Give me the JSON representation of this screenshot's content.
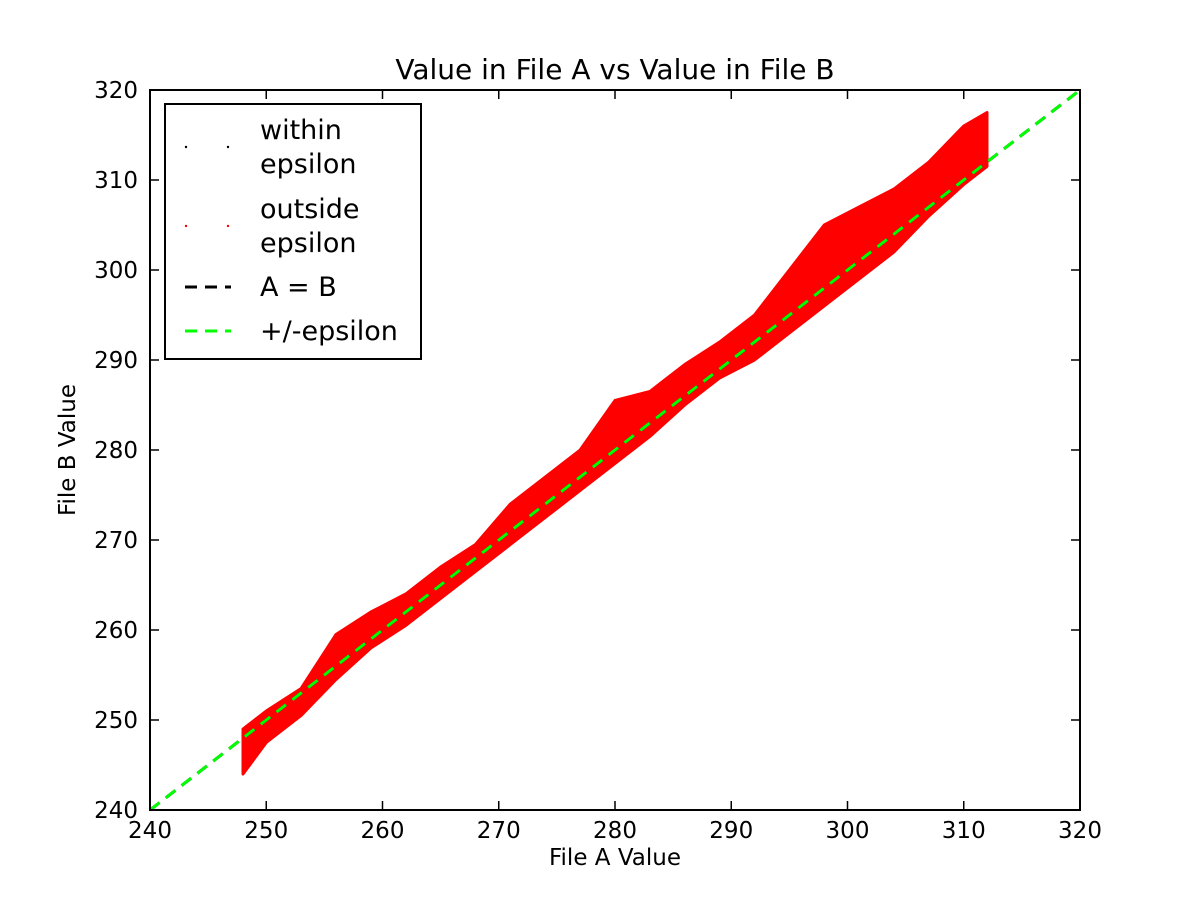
{
  "chart_data": {
    "type": "scatter",
    "title": "Value in File A vs Value in File B",
    "xlabel": "File A Value",
    "ylabel": "File B Value",
    "xlim": [
      240,
      320
    ],
    "ylim": [
      240,
      320
    ],
    "xticks": [
      240,
      250,
      260,
      270,
      280,
      290,
      300,
      310,
      320
    ],
    "yticks": [
      240,
      250,
      260,
      270,
      280,
      290,
      300,
      310,
      320
    ],
    "grid": false,
    "legend_position": "top-left",
    "series": [
      {
        "name": "within\nepsilon",
        "kind": "points",
        "color": "#000000",
        "points": []
      },
      {
        "name": "outside\nepsilon",
        "kind": "points",
        "color": "#ff0000",
        "band_center": [
          [
            248,
            247
          ],
          [
            250,
            249.5
          ],
          [
            253,
            252
          ],
          [
            256,
            256
          ],
          [
            259,
            260
          ],
          [
            262,
            262
          ],
          [
            265,
            265
          ],
          [
            268,
            268
          ],
          [
            271,
            272
          ],
          [
            274,
            275
          ],
          [
            277,
            278
          ],
          [
            280,
            282
          ],
          [
            283,
            284
          ],
          [
            286,
            287
          ],
          [
            289,
            290
          ],
          [
            292,
            292.5
          ],
          [
            295,
            297
          ],
          [
            298,
            301
          ],
          [
            301,
            304
          ],
          [
            304,
            307
          ],
          [
            307,
            310
          ],
          [
            310,
            313
          ],
          [
            312,
            315
          ]
        ],
        "band_lower": [
          [
            248,
            244
          ],
          [
            250,
            247.5
          ],
          [
            253,
            250.5
          ],
          [
            256,
            254.5
          ],
          [
            259,
            258
          ],
          [
            262,
            260.5
          ],
          [
            265,
            263.5
          ],
          [
            268,
            266.5
          ],
          [
            271,
            269.5
          ],
          [
            274,
            272.5
          ],
          [
            277,
            275.5
          ],
          [
            280,
            278.5
          ],
          [
            283,
            281.5
          ],
          [
            286,
            285
          ],
          [
            289,
            288
          ],
          [
            292,
            290
          ],
          [
            295,
            293
          ],
          [
            298,
            296
          ],
          [
            301,
            299
          ],
          [
            304,
            302
          ],
          [
            307,
            306
          ],
          [
            310,
            309.5
          ],
          [
            312,
            311.5
          ]
        ],
        "band_upper": [
          [
            248,
            249
          ],
          [
            250,
            251
          ],
          [
            253,
            253.5
          ],
          [
            256,
            259.5
          ],
          [
            259,
            262
          ],
          [
            262,
            264
          ],
          [
            265,
            267
          ],
          [
            268,
            269.5
          ],
          [
            271,
            274
          ],
          [
            274,
            277
          ],
          [
            277,
            280
          ],
          [
            280,
            285.5
          ],
          [
            283,
            286.5
          ],
          [
            286,
            289.5
          ],
          [
            289,
            292
          ],
          [
            292,
            295
          ],
          [
            295,
            300
          ],
          [
            298,
            305
          ],
          [
            301,
            307
          ],
          [
            304,
            309
          ],
          [
            307,
            312
          ],
          [
            310,
            316
          ],
          [
            312,
            317.5
          ]
        ]
      },
      {
        "name": "A = B",
        "kind": "line",
        "color": "#000000",
        "dash": "dashed",
        "x": [
          240,
          320
        ],
        "y": [
          240,
          320
        ]
      },
      {
        "name": "+/-epsilon",
        "kind": "line",
        "color": "#00ff00",
        "dash": "dashed",
        "x": [
          240,
          320
        ],
        "y": [
          240,
          320
        ]
      }
    ]
  }
}
